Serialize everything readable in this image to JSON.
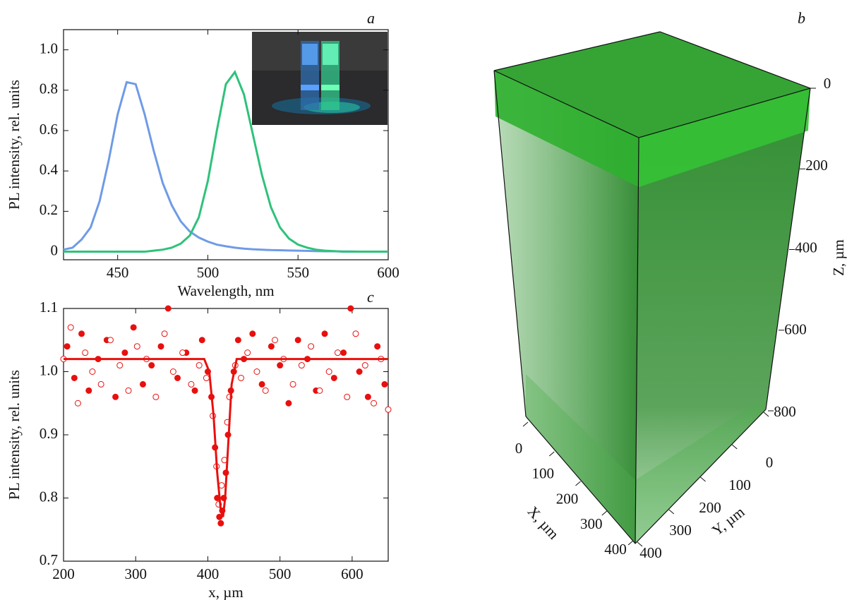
{
  "chart_data": [
    {
      "type": "line",
      "label": "a",
      "xlabel": "Wavelength, nm",
      "ylabel": "PL intensity, rel. units",
      "xlim": [
        420,
        600
      ],
      "xticks": [
        450,
        500,
        550,
        600
      ],
      "ylim": [
        -0.04,
        1.1
      ],
      "yticks": [
        0,
        0.2,
        0.4,
        0.6,
        0.8,
        {
          "value": 1.0,
          "label": "1.0"
        }
      ],
      "x": [
        420,
        425,
        430,
        435,
        440,
        445,
        450,
        455,
        460,
        465,
        470,
        475,
        480,
        485,
        490,
        495,
        500,
        505,
        510,
        515,
        520,
        525,
        530,
        535,
        540,
        545,
        550,
        555,
        560,
        565,
        570,
        575,
        580,
        585,
        590,
        595,
        600
      ],
      "series": [
        {
          "color": "#6f9be6",
          "values": [
            0.01,
            0.02,
            0.06,
            0.12,
            0.25,
            0.45,
            0.68,
            0.84,
            0.83,
            0.68,
            0.5,
            0.34,
            0.23,
            0.15,
            0.1,
            0.07,
            0.05,
            0.035,
            0.027,
            0.02,
            0.015,
            0.012,
            0.01,
            0.008,
            0.007,
            0.006,
            0.005,
            0.004,
            0.003,
            0.002,
            0.002,
            0.001,
            0.001,
            0,
            0,
            0,
            0
          ]
        },
        {
          "color": "#2ec27a",
          "values": [
            0,
            0,
            0,
            0,
            0,
            0,
            0,
            0,
            0,
            0,
            0.005,
            0.01,
            0.02,
            0.04,
            0.08,
            0.17,
            0.35,
            0.6,
            0.83,
            0.89,
            0.78,
            0.58,
            0.38,
            0.22,
            0.12,
            0.065,
            0.035,
            0.02,
            0.01,
            0.005,
            0.003,
            0,
            0,
            0,
            0,
            0,
            0
          ]
        }
      ]
    },
    {
      "type": "scatter",
      "label": "c",
      "xlabel": "x, µm",
      "ylabel": "PL intensity, rel. units",
      "xlim": [
        200,
        650
      ],
      "xticks": [
        200,
        300,
        400,
        500,
        600
      ],
      "ylim": [
        0.7,
        1.1
      ],
      "yticks": [
        0.7,
        0.8,
        0.9,
        {
          "value": 1.0,
          "label": "1.0"
        },
        1.1
      ],
      "series": [
        {
          "color": "#e8100e",
          "style": "filled-markers",
          "x": [
            205,
            215,
            225,
            235,
            248,
            260,
            272,
            285,
            297,
            310,
            322,
            335,
            345,
            358,
            370,
            382,
            392,
            400,
            405,
            410,
            413,
            416,
            418,
            420,
            422,
            425,
            428,
            432,
            436,
            442,
            450,
            462,
            475,
            488,
            500,
            512,
            525,
            538,
            550,
            562,
            575,
            588,
            598,
            610,
            622,
            635,
            645
          ],
          "values": [
            1.04,
            0.99,
            1.06,
            0.97,
            1.02,
            1.05,
            0.96,
            1.03,
            1.07,
            0.98,
            1.01,
            1.04,
            1.1,
            0.99,
            1.03,
            0.97,
            1.05,
            1.0,
            0.96,
            0.88,
            0.8,
            0.77,
            0.76,
            0.78,
            0.8,
            0.84,
            0.9,
            0.97,
            1.0,
            1.05,
            1.02,
            1.06,
            0.98,
            1.04,
            1.01,
            0.95,
            1.05,
            1.02,
            0.97,
            1.06,
            0.99,
            1.03,
            1.1,
            1.0,
            0.96,
            1.04,
            0.98
          ]
        },
        {
          "color": "#e8100e",
          "style": "open-markers",
          "x": [
            200,
            210,
            220,
            230,
            240,
            252,
            265,
            278,
            290,
            302,
            315,
            328,
            340,
            352,
            365,
            377,
            388,
            398,
            407,
            412,
            415,
            419,
            423,
            427,
            430,
            438,
            446,
            455,
            468,
            480,
            493,
            505,
            518,
            530,
            543,
            555,
            568,
            580,
            593,
            605,
            618,
            630,
            640,
            650
          ],
          "values": [
            1.02,
            1.07,
            0.95,
            1.03,
            1.0,
            0.98,
            1.05,
            1.01,
            0.97,
            1.04,
            1.02,
            0.96,
            1.06,
            1.0,
            1.03,
            0.98,
            1.01,
            0.99,
            0.93,
            0.85,
            0.79,
            0.82,
            0.86,
            0.92,
            0.96,
            1.01,
            0.99,
            1.03,
            1.0,
            0.97,
            1.05,
            1.02,
            0.98,
            1.01,
            1.04,
            0.97,
            1.0,
            1.03,
            0.96,
            1.06,
            1.01,
            0.95,
            1.02,
            0.94
          ]
        },
        {
          "color": "#e8100e",
          "style": "line",
          "x": [
            200,
            395,
            402,
            408,
            413,
            418,
            421,
            424,
            428,
            433,
            440,
            650
          ],
          "values": [
            1.02,
            1.02,
            1.0,
            0.93,
            0.84,
            0.78,
            0.77,
            0.8,
            0.88,
            0.98,
            1.02,
            1.02
          ]
        }
      ]
    },
    {
      "type": "volume",
      "label": "b",
      "xlabel": "X, µm",
      "ylabel": "Y, µm",
      "zlabel": "Z, µm",
      "xlim": [
        0,
        400
      ],
      "xticks": [
        0,
        100,
        200,
        300,
        400
      ],
      "ylim": [
        0,
        400
      ],
      "yticks": [
        0,
        100,
        200,
        300,
        400
      ],
      "zlim": [
        0,
        800
      ],
      "zticks": [
        0,
        200,
        400,
        600,
        800
      ]
    }
  ]
}
